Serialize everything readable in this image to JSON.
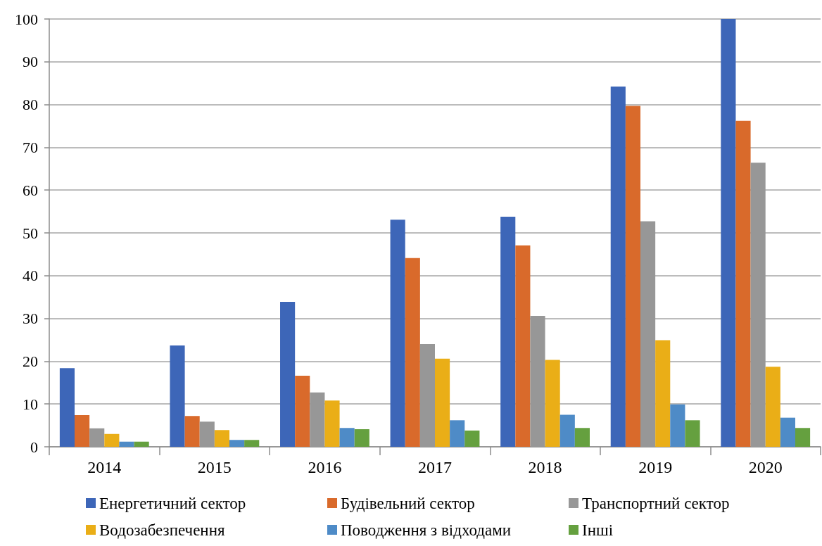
{
  "chart_data": {
    "type": "bar",
    "categories": [
      "2014",
      "2015",
      "2016",
      "2017",
      "2018",
      "2019",
      "2020"
    ],
    "series": [
      {
        "name": "Енергетичний сектор",
        "color": "#3d66b8",
        "values": [
          18.4,
          23.7,
          33.9,
          53.1,
          53.8,
          84.2,
          100
        ]
      },
      {
        "name": "Будівельний сектор",
        "color": "#d96a2b",
        "values": [
          7.4,
          7.2,
          16.6,
          44.1,
          47.1,
          79.7,
          76.2
        ]
      },
      {
        "name": "Транспортний сектор",
        "color": "#979797",
        "values": [
          4.3,
          5.9,
          12.7,
          24.0,
          30.6,
          52.7,
          66.4
        ]
      },
      {
        "name": "Водозабезпечення",
        "color": "#eaae17",
        "values": [
          3.0,
          3.9,
          10.8,
          20.6,
          20.3,
          24.9,
          18.7
        ]
      },
      {
        "name": "Поводження з відходами",
        "color": "#4e8bc7",
        "values": [
          1.2,
          1.6,
          4.4,
          6.2,
          7.5,
          9.9,
          6.8
        ]
      },
      {
        "name": "Інші",
        "color": "#65a03f",
        "values": [
          1.2,
          1.6,
          4.1,
          3.8,
          4.4,
          6.2,
          4.4
        ]
      }
    ],
    "ylim": [
      0,
      100
    ],
    "yticks": [
      0,
      10,
      20,
      30,
      40,
      50,
      60,
      70,
      80,
      90,
      100
    ],
    "grid": "y",
    "legend": "bottom"
  }
}
